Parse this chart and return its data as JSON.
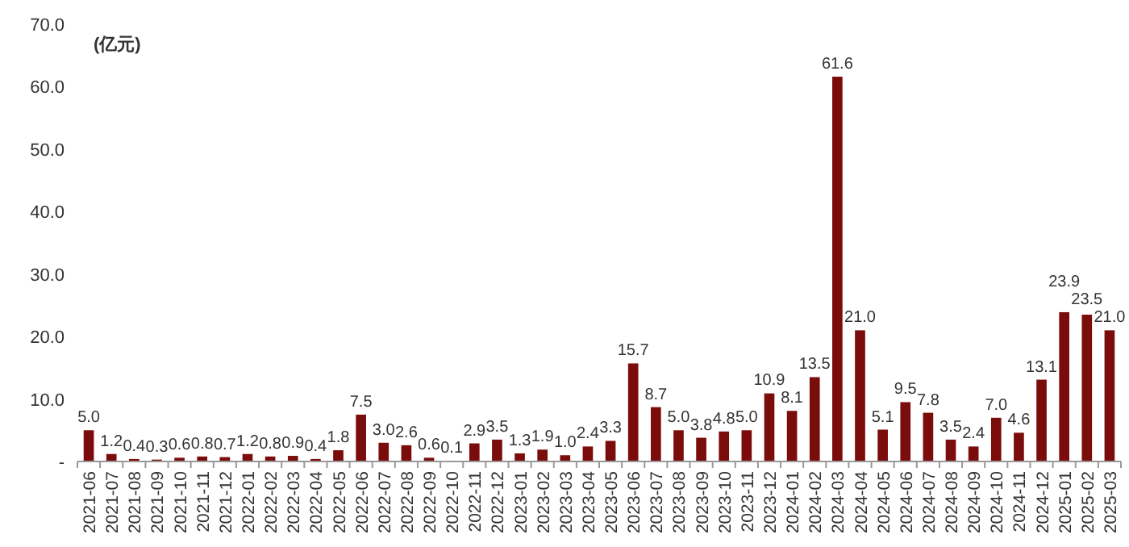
{
  "chart_data": {
    "type": "bar",
    "ylabel": "(亿元)",
    "categories": [
      "2021-06",
      "2021-07",
      "2021-08",
      "2021-09",
      "2021-10",
      "2021-11",
      "2021-12",
      "2022-01",
      "2022-02",
      "2022-03",
      "2022-04",
      "2022-05",
      "2022-06",
      "2022-07",
      "2022-08",
      "2022-09",
      "2022-10",
      "2022-11",
      "2022-12",
      "2023-01",
      "2023-02",
      "2023-03",
      "2023-04",
      "2023-05",
      "2023-06",
      "2023-07",
      "2023-08",
      "2023-09",
      "2023-10",
      "2023-11",
      "2023-12",
      "2024-01",
      "2024-02",
      "2024-03",
      "2024-04",
      "2024-05",
      "2024-06",
      "2024-07",
      "2024-08",
      "2024-09",
      "2024-10",
      "2024-11",
      "2024-12",
      "2025-01",
      "2025-02",
      "2025-03"
    ],
    "values": [
      5.0,
      1.2,
      0.4,
      0.3,
      0.6,
      0.8,
      0.7,
      1.2,
      0.8,
      0.9,
      0.4,
      1.8,
      7.5,
      3.0,
      2.6,
      0.6,
      0.1,
      2.9,
      3.5,
      1.3,
      1.9,
      1.0,
      2.4,
      3.3,
      15.7,
      8.7,
      5.0,
      3.8,
      4.8,
      5.0,
      10.9,
      8.1,
      13.5,
      61.6,
      21.0,
      5.1,
      9.5,
      7.8,
      3.5,
      2.4,
      7.0,
      4.6,
      13.1,
      23.9,
      23.5,
      21.0
    ],
    "value_labels": [
      "5.0",
      "1.2",
      "0.4",
      "0.3",
      "0.6",
      "0.8",
      "0.7",
      "1.2",
      "0.8",
      "0.9",
      "0.4",
      "1.8",
      "7.5",
      "3.0",
      "2.6",
      "0.6",
      "0.1",
      "2.9",
      "3.5",
      "1.3",
      "1.9",
      "1.0",
      "2.4",
      "3.3",
      "15.7",
      "8.7",
      "5.0",
      "3.8",
      "4.8",
      "5.0",
      "10.9",
      "8.1",
      "13.5",
      "61.6",
      "21.0",
      "5.1",
      "9.5",
      "7.8",
      "3.5",
      "2.4",
      "7.0",
      "4.6",
      "13.1",
      "23.9",
      "23.5",
      "21.0"
    ],
    "color": "#7b0c0c",
    "ylim": [
      0,
      70
    ],
    "yticks": [
      {
        "value": 0,
        "label": "-"
      },
      {
        "value": 10,
        "label": "10.0"
      },
      {
        "value": 20,
        "label": "20.0"
      },
      {
        "value": 30,
        "label": "30.0"
      },
      {
        "value": 40,
        "label": "40.0"
      },
      {
        "value": 50,
        "label": "50.0"
      },
      {
        "value": 60,
        "label": "60.0"
      },
      {
        "value": 70,
        "label": "70.0"
      }
    ],
    "grid": false
  }
}
